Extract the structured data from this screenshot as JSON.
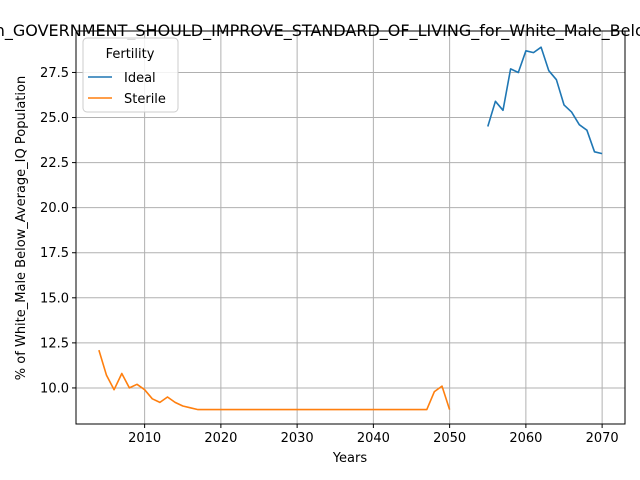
{
  "chart_data": {
    "type": "line",
    "title": "Opinion_GOVERNMENT_SHOULD_IMPROVE_STANDARD_OF_LIVING_for_White_Male_Below_Average_IQ",
    "xlabel": "Years",
    "ylabel": "% of White_Male Below_Average_IQ Population",
    "xlim": [
      2001,
      2073
    ],
    "ylim": [
      8.0,
      29.8
    ],
    "xticks": [
      2010,
      2020,
      2030,
      2040,
      2050,
      2060,
      2070
    ],
    "xtick_labels": [
      "2010",
      "2020",
      "2030",
      "2040",
      "2050",
      "2060",
      "2070"
    ],
    "yticks": [
      10.0,
      12.5,
      15.0,
      17.5,
      20.0,
      22.5,
      25.0,
      27.5
    ],
    "ytick_labels": [
      "10.0",
      "12.5",
      "15.0",
      "17.5",
      "20.0",
      "22.5",
      "25.0",
      "27.5"
    ],
    "grid": true,
    "legend": {
      "title": "Fertility",
      "placement": "top-left"
    },
    "series": [
      {
        "name": "Ideal",
        "color": "#1f77b4",
        "x": [
          2055,
          2056,
          2057,
          2058,
          2059,
          2060,
          2061,
          2062,
          2063,
          2064,
          2065,
          2066,
          2067,
          2068,
          2069,
          2070
        ],
        "y": [
          24.5,
          25.9,
          25.4,
          27.7,
          27.5,
          28.7,
          28.6,
          28.9,
          27.6,
          27.1,
          25.7,
          25.3,
          24.6,
          24.3,
          23.1,
          23.0
        ]
      },
      {
        "name": "Sterile",
        "color": "#ff7f0e",
        "x": [
          2004,
          2005,
          2006,
          2007,
          2008,
          2009,
          2010,
          2011,
          2012,
          2013,
          2014,
          2015,
          2016,
          2017,
          2018,
          2019,
          2020,
          2025,
          2030,
          2035,
          2040,
          2045,
          2046,
          2047,
          2048,
          2049,
          2050
        ],
        "y": [
          12.1,
          10.7,
          9.9,
          10.8,
          10.0,
          10.2,
          9.9,
          9.4,
          9.2,
          9.5,
          9.2,
          9.0,
          8.9,
          8.8,
          8.8,
          8.8,
          8.8,
          8.8,
          8.8,
          8.8,
          8.8,
          8.8,
          8.8,
          8.8,
          9.8,
          10.1,
          8.8
        ]
      }
    ]
  }
}
